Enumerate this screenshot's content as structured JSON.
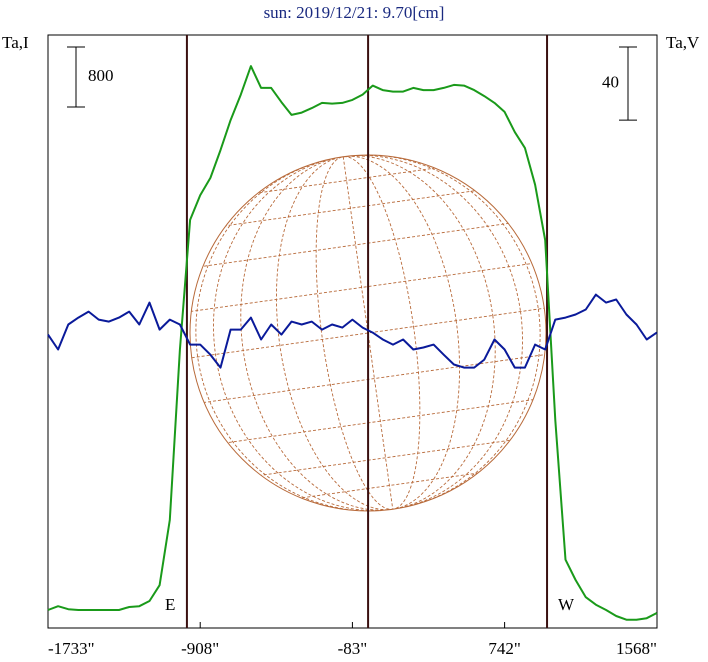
{
  "chart_data": {
    "type": "line",
    "title": "sun: 2019/12/21: 9.70[cm]",
    "y_label": "Ta,I",
    "y2_label": "Ta,V",
    "i_scale": 800,
    "v_scale": 40,
    "annotations": [
      "E",
      "W"
    ],
    "vlines": [
      -980,
      2,
      972
    ],
    "x": [
      -1733,
      -1678,
      -1623,
      -1568,
      -1513,
      -1458,
      -1403,
      -1348,
      -1293,
      -1238,
      -1183,
      -1128,
      -1073,
      -1018,
      -963,
      -908,
      -853,
      -798,
      -743,
      -688,
      -633,
      -578,
      -523,
      -468,
      -413,
      -358,
      -303,
      -248,
      -193,
      -138,
      -83,
      -28,
      27,
      82,
      137,
      192,
      247,
      302,
      357,
      412,
      467,
      522,
      577,
      632,
      687,
      742,
      797,
      852,
      907,
      962,
      1017,
      1072,
      1127,
      1182,
      1237,
      1292,
      1347,
      1402,
      1457,
      1512,
      1567
    ],
    "series": [
      {
        "name": "I",
        "color": "#1a9a1a",
        "values": [
          200,
          250,
          210,
          200,
          200,
          200,
          200,
          200,
          240,
          250,
          320,
          530,
          1400,
          3670,
          5400,
          5730,
          5960,
          6330,
          6730,
          7070,
          7450,
          7160,
          7160,
          6970,
          6800,
          6830,
          6890,
          6960,
          6950,
          6960,
          7000,
          7070,
          7190,
          7130,
          7110,
          7110,
          7160,
          7130,
          7130,
          7160,
          7200,
          7190,
          7130,
          7050,
          6960,
          6840,
          6570,
          6360,
          5870,
          5130,
          2730,
          870,
          600,
          370,
          270,
          200,
          120,
          70,
          70,
          90,
          160
        ]
      },
      {
        "name": "V",
        "color": "#0a1a9a",
        "axis": "y2",
        "values": [
          0,
          -8.2,
          5.5,
          9.3,
          12.6,
          8.2,
          7.1,
          9.3,
          12.6,
          5.5,
          17.5,
          2.7,
          8.2,
          5.5,
          -5.5,
          -5.5,
          -11,
          -18.1,
          2.7,
          2.7,
          9.3,
          -2.7,
          5.5,
          0,
          7.1,
          5.5,
          7.1,
          2.7,
          5.5,
          3.8,
          8.2,
          3.8,
          1.1,
          -2.7,
          -5.5,
          -2.7,
          -8.2,
          -7.1,
          -5.5,
          -11,
          -16.4,
          -18.1,
          -18.1,
          -13.7,
          -2.7,
          -8.2,
          -18.1,
          -18.1,
          -5.5,
          -8.2,
          8.2,
          9.3,
          11,
          13.7,
          21.9,
          17.5,
          19.2,
          11,
          5.5,
          -2.7,
          1.1
        ]
      }
    ],
    "xlim": [
      -1733,
      1568
    ],
    "ylim": [
      0,
      7865
    ],
    "y2lim": [
      -159,
      164
    ],
    "xticks": [
      {
        "value": -1733,
        "label": "-1733\""
      },
      {
        "value": -908,
        "label": "-908\""
      },
      {
        "value": -83,
        "label": "-83\""
      },
      {
        "value": 742,
        "label": "742\""
      },
      {
        "value": 1568,
        "label": "1568\""
      }
    ]
  }
}
